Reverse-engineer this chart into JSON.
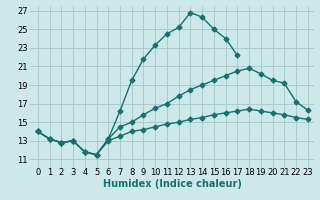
{
  "xlabel": "Humidex (Indice chaleur)",
  "bg_color": "#cce8e8",
  "grid_color": "#aacccc",
  "line_color": "#1a7070",
  "xlim": [
    -0.5,
    23.5
  ],
  "ylim": [
    10.5,
    27.5
  ],
  "xticks": [
    0,
    1,
    2,
    3,
    4,
    5,
    6,
    7,
    8,
    9,
    10,
    11,
    12,
    13,
    14,
    15,
    16,
    17,
    18,
    19,
    20,
    21,
    22,
    23
  ],
  "yticks": [
    11,
    13,
    15,
    17,
    19,
    21,
    23,
    25,
    27
  ],
  "line1_x": [
    0,
    1,
    2,
    3,
    4,
    5,
    6,
    7,
    8,
    9,
    10,
    11,
    12,
    13,
    14,
    15,
    16,
    17
  ],
  "line1_y": [
    14.0,
    13.2,
    12.8,
    13.0,
    11.8,
    11.5,
    13.2,
    16.2,
    19.5,
    21.8,
    23.3,
    24.5,
    25.2,
    26.8,
    26.3,
    25.0,
    24.0,
    22.2
  ],
  "line2_x": [
    0,
    1,
    2,
    3,
    4,
    5,
    6,
    7,
    8,
    9,
    10,
    11,
    12,
    13,
    14,
    15,
    16,
    17,
    18,
    19,
    20,
    21,
    22,
    23
  ],
  "line2_y": [
    14.0,
    13.2,
    12.8,
    13.0,
    11.8,
    11.5,
    13.2,
    14.5,
    15.0,
    15.8,
    16.5,
    17.0,
    17.8,
    18.5,
    19.0,
    19.5,
    20.0,
    20.5,
    20.8,
    20.2,
    19.5,
    19.2,
    17.2,
    16.3
  ],
  "line3_x": [
    0,
    1,
    2,
    3,
    4,
    5,
    6,
    7,
    8,
    9,
    10,
    11,
    12,
    13,
    14,
    15,
    16,
    17,
    18,
    19,
    20,
    21,
    22,
    23
  ],
  "line3_y": [
    14.0,
    13.2,
    12.8,
    13.0,
    11.8,
    11.5,
    13.0,
    13.5,
    14.0,
    14.2,
    14.5,
    14.8,
    15.0,
    15.3,
    15.5,
    15.8,
    16.0,
    16.2,
    16.4,
    16.2,
    16.0,
    15.8,
    15.5,
    15.3
  ],
  "marker": "D",
  "markersize": 2.5,
  "linewidth": 1.0,
  "xlabel_fontsize": 7,
  "tick_fontsize": 6
}
